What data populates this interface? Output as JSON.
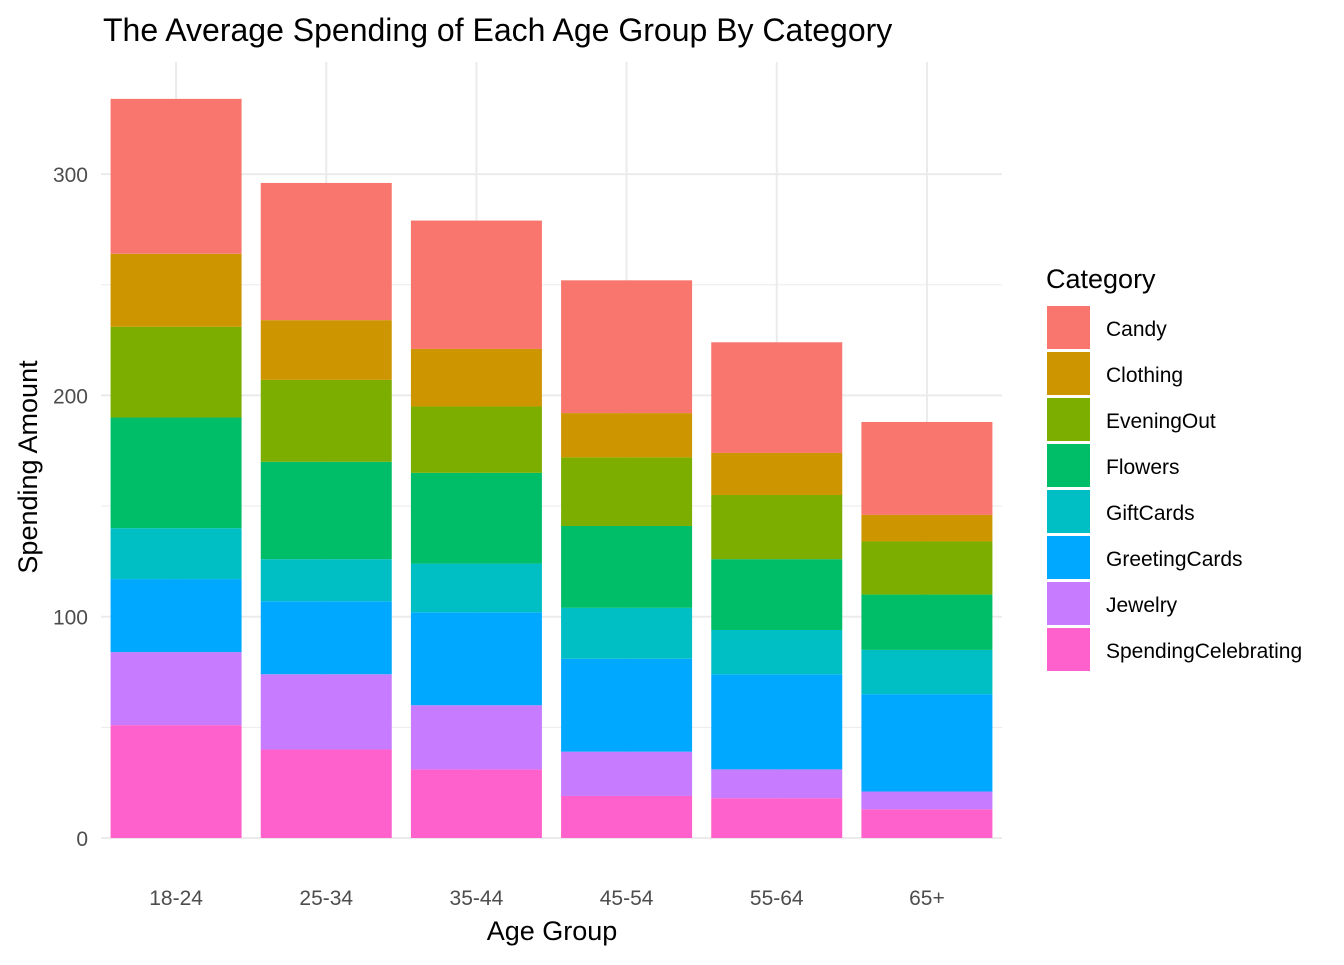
{
  "chart_data": {
    "type": "bar",
    "stacked": true,
    "title": "The Average Spending of Each Age Group By Category",
    "xlabel": "Age Group",
    "ylabel": "Spending Amount",
    "ylim": [
      0,
      340
    ],
    "y_ticks": [
      0,
      100,
      200,
      300
    ],
    "grid": true,
    "legend_position": "right",
    "legend_title": "Category",
    "categories": [
      "18-24",
      "25-34",
      "35-44",
      "45-54",
      "55-64",
      "65+"
    ],
    "series": [
      {
        "name": "SpendingCelebrating",
        "color": "#FF61CC",
        "values": [
          51,
          40,
          31,
          19,
          18,
          13
        ]
      },
      {
        "name": "Jewelry",
        "color": "#C77CFF",
        "values": [
          33,
          34,
          29,
          20,
          13,
          8
        ]
      },
      {
        "name": "GreetingCards",
        "color": "#00A9FF",
        "values": [
          33,
          33,
          42,
          42,
          43,
          44
        ]
      },
      {
        "name": "GiftCards",
        "color": "#00BFC4",
        "values": [
          23,
          19,
          22,
          23,
          20,
          20
        ]
      },
      {
        "name": "Flowers",
        "color": "#00BE67",
        "values": [
          50,
          44,
          41,
          37,
          32,
          25
        ]
      },
      {
        "name": "EveningOut",
        "color": "#7CAE00",
        "values": [
          41,
          37,
          30,
          31,
          29,
          24
        ]
      },
      {
        "name": "Clothing",
        "color": "#CD9600",
        "values": [
          33,
          27,
          26,
          20,
          19,
          12
        ]
      },
      {
        "name": "Candy",
        "color": "#F8766D",
        "values": [
          70,
          62,
          58,
          60,
          50,
          42
        ]
      }
    ],
    "legend_order": [
      "Candy",
      "Clothing",
      "EveningOut",
      "Flowers",
      "GiftCards",
      "GreetingCards",
      "Jewelry",
      "SpendingCelebrating"
    ]
  }
}
